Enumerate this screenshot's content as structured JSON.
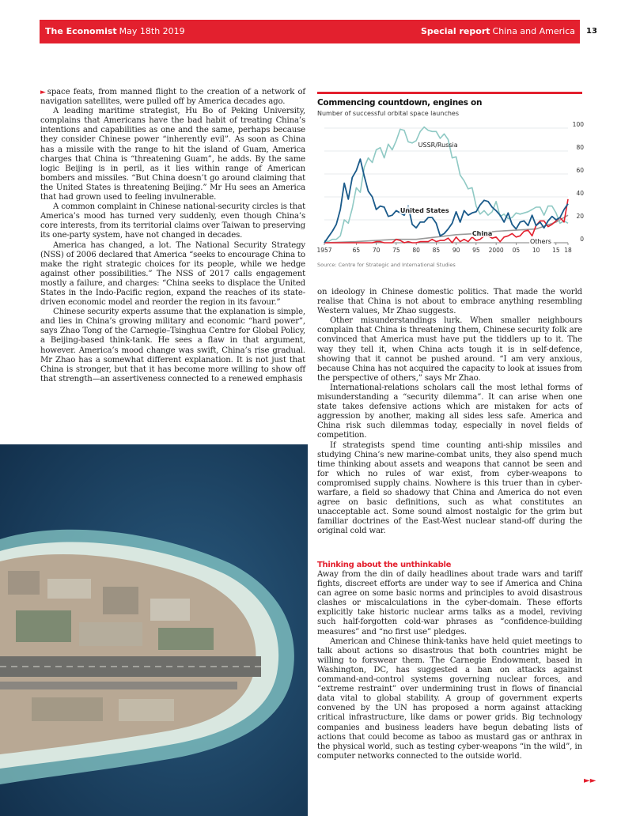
{
  "header": {
    "publication": "The Economist",
    "date": "May 18th 2019",
    "section": "Special report",
    "section_topic": "China and America",
    "page_number": "13"
  },
  "article": {
    "col1": [
      "space feats, from manned flight to the creation of a network of navigation satellites, were pulled off by America decades ago.",
      "A leading maritime strategist, Hu Bo of Peking University, complains that Americans have the bad habit of treating China’s intentions and capabilities as one and the same, perhaps because they consider Chinese power “inherently evil”. As soon as China has a missile with the range to hit the island of Guam, America charges that China is “threatening Guam”, he adds. By the same logic Beijing is in peril, as it lies within range of American bombers and missiles. “But China doesn’t go around claiming that the United States is threatening Beijing.” Mr Hu sees an America that had grown used to feeling invulnerable.",
      "A common complaint in Chinese national-security circles is that America’s mood has turned very suddenly, even though China’s core interests, from its territorial claims over Taiwan to preserving its one-party system, have not changed in decades.",
      "America has changed, a lot. The National Security Strategy (NSS) of 2006 declared that America “seeks to encourage China to make the right strategic choices for its people, while we hedge against other possibilities.” The NSS of 2017 calls engagement mostly a failure, and charges: “China seeks to displace the United States in the Indo-Pacific region, expand the reaches of its state-driven economic model and reorder the region in its favour.”",
      "Chinese security experts assume that the explanation is simple, and lies in China’s growing military and economic “hard power”, says Zhao Tong of the Carnegie–Tsinghua Centre for Global Policy, a Beijing-based think-tank. He sees a flaw in that argument, however. America’s mood change was swift, China’s rise gradual. Mr Zhao has a somewhat different explanation. It is not just that China is stronger, but that it has become more willing to show off that strength—an assertiveness connected to a renewed emphasis"
    ],
    "col2": [
      "on ideology in Chinese domestic politics. That made the world realise that China is not about to embrace anything resembling Western values, Mr Zhao suggests.",
      "Other misunderstandings lurk. When smaller neighbours complain that China is threatening them, Chinese security folk are convinced that America must have put the tiddlers up to it. The way they tell it, when China acts tough it is in self-defence, showing that it cannot be pushed around. “I am very anxious, because China has not acquired the capacity to look at issues from the perspective of others,” says Mr Zhao.",
      "International-relations scholars call the most lethal forms of misunderstanding a “security dilemma”. It can arise when one state takes defensive actions which are mistaken for acts of aggression by another, making all sides less safe. America and China risk such dilemmas today, especially in novel fields of competition.",
      "If strategists spend time counting anti-ship missiles and studying China’s new marine-combat units, they also spend much time thinking about assets and weapons that cannot be seen and for which no rules of war exist, from cyber-weapons to compromised supply chains. Nowhere is this truer than in cyber-warfare, a field so shadowy that China and America do not even agree on basic definitions, such as what constitutes an unacceptable act. Some sound almost nostalgic for the grim but familiar doctrines of the East-West nuclear stand-off during the original cold war."
    ],
    "subhead": "Thinking about the unthinkable",
    "col3": [
      "Away from the din of daily headlines about trade wars and tariff fights, discreet efforts are under way to see if America and China can agree on some basic norms and principles to avoid disastrous clashes or miscalculations in the cyber-domain. These efforts explicitly take historic nuclear arms talks as a model, reviving such half-forgotten cold-war phrases as “confidence-building measures” and “no first use” pledges.",
      "American and Chinese think-tanks have held quiet meetings to talk about actions so disastrous that both countries might be willing to forswear them. The Carnegie Endowment, based in Washington, DC, has suggested a ban on attacks against command-and-control systems governing nuclear forces, and “extreme restraint” over undermining trust in flows of financial data vital to global stability. A group of government experts convened by the UN has proposed a norm against attacking critical infrastructure, like dams or power grids. Big technology companies and business leaders have begun debating lists of actions that could become as taboo as mustard gas or anthrax in the physical world, such as testing cyber-weapons “in the wild”, in computer networks connected to the outside world."
    ]
  },
  "chart_data": {
    "type": "line",
    "title": "Commencing countdown, engines on",
    "subtitle": "Number of successful orbital space launches",
    "source": "Source: Centre for Strategic and International Studies",
    "xlim": [
      1957,
      2018
    ],
    "ylim": [
      0,
      100
    ],
    "x_tick_labels": [
      "1957",
      "65",
      "70",
      "75",
      "80",
      "85",
      "90",
      "95",
      "2000",
      "05",
      "10",
      "15",
      "18"
    ],
    "x_tick_values": [
      1957,
      1965,
      1970,
      1975,
      1980,
      1985,
      1990,
      1995,
      2000,
      2005,
      2010,
      2015,
      2018
    ],
    "y_ticks": [
      0,
      20,
      40,
      60,
      80,
      100
    ],
    "grid": true,
    "series": [
      {
        "name": "USSR/Russia",
        "color": "#8fc9c4",
        "x": [
          1957,
          1958,
          1959,
          1960,
          1961,
          1962,
          1963,
          1964,
          1965,
          1966,
          1967,
          1968,
          1969,
          1970,
          1971,
          1972,
          1973,
          1974,
          1975,
          1976,
          1977,
          1978,
          1979,
          1980,
          1981,
          1982,
          1983,
          1984,
          1985,
          1986,
          1987,
          1988,
          1989,
          1990,
          1991,
          1992,
          1993,
          1994,
          1995,
          1996,
          1997,
          1998,
          1999,
          2000,
          2001,
          2002,
          2003,
          2004,
          2005,
          2006,
          2007,
          2008,
          2009,
          2010,
          2011,
          2012,
          2013,
          2014,
          2015,
          2016,
          2017,
          2018
        ],
        "values": [
          2,
          1,
          3,
          3,
          6,
          20,
          17,
          30,
          48,
          44,
          66,
          74,
          70,
          81,
          83,
          74,
          86,
          81,
          89,
          99,
          98,
          88,
          87,
          89,
          97,
          101,
          98,
          97,
          97,
          91,
          95,
          90,
          74,
          75,
          59,
          54,
          47,
          48,
          32,
          25,
          28,
          24,
          27,
          36,
          23,
          25,
          21,
          22,
          26,
          25,
          26,
          27,
          29,
          31,
          31,
          24,
          32,
          32,
          26,
          17,
          19,
          17
        ]
      },
      {
        "name": "United States",
        "color": "#1a5a8a",
        "x": [
          1957,
          1958,
          1959,
          1960,
          1961,
          1962,
          1963,
          1964,
          1965,
          1966,
          1967,
          1968,
          1969,
          1970,
          1971,
          1972,
          1973,
          1974,
          1975,
          1976,
          1977,
          1978,
          1979,
          1980,
          1981,
          1982,
          1983,
          1984,
          1985,
          1986,
          1987,
          1988,
          1989,
          1990,
          1991,
          1992,
          1993,
          1994,
          1995,
          1996,
          1997,
          1998,
          1999,
          2000,
          2001,
          2002,
          2003,
          2004,
          2005,
          2006,
          2007,
          2008,
          2009,
          2010,
          2011,
          2012,
          2013,
          2014,
          2015,
          2016,
          2017,
          2018
        ],
        "values": [
          0,
          5,
          10,
          16,
          29,
          52,
          38,
          57,
          63,
          73,
          58,
          45,
          40,
          29,
          32,
          31,
          23,
          24,
          28,
          26,
          24,
          32,
          16,
          13,
          18,
          18,
          22,
          22,
          17,
          6,
          8,
          12,
          17,
          27,
          18,
          28,
          24,
          26,
          27,
          33,
          37,
          36,
          31,
          28,
          24,
          18,
          26,
          16,
          12,
          18,
          19,
          15,
          24,
          15,
          18,
          13,
          19,
          23,
          20,
          22,
          29,
          34
        ]
      },
      {
        "name": "China",
        "color": "#e3202e",
        "x": [
          1957,
          1969,
          1970,
          1971,
          1972,
          1973,
          1974,
          1975,
          1976,
          1977,
          1978,
          1979,
          1980,
          1981,
          1982,
          1983,
          1984,
          1985,
          1986,
          1987,
          1988,
          1989,
          1990,
          1991,
          1992,
          1993,
          1994,
          1995,
          1996,
          1997,
          1998,
          1999,
          2000,
          2001,
          2002,
          2003,
          2004,
          2005,
          2006,
          2007,
          2008,
          2009,
          2010,
          2011,
          2012,
          2013,
          2014,
          2015,
          2016,
          2017,
          2018
        ],
        "values": [
          0,
          0,
          1,
          1,
          0,
          0,
          0,
          3,
          2,
          0,
          1,
          0,
          0,
          1,
          1,
          1,
          3,
          1,
          2,
          2,
          4,
          0,
          5,
          1,
          3,
          1,
          5,
          2,
          3,
          6,
          6,
          4,
          5,
          1,
          5,
          6,
          8,
          5,
          6,
          10,
          11,
          6,
          15,
          19,
          19,
          14,
          16,
          19,
          22,
          18,
          38
        ]
      },
      {
        "name": "Others",
        "color": "#9a9a9a",
        "x": [
          1957,
          1965,
          1970,
          1975,
          1980,
          1985,
          1990,
          1995,
          2000,
          2005,
          2010,
          2015,
          2018
        ],
        "values": [
          0,
          1,
          2,
          3,
          3,
          5,
          7,
          8,
          10,
          11,
          12,
          18,
          24
        ]
      }
    ]
  }
}
